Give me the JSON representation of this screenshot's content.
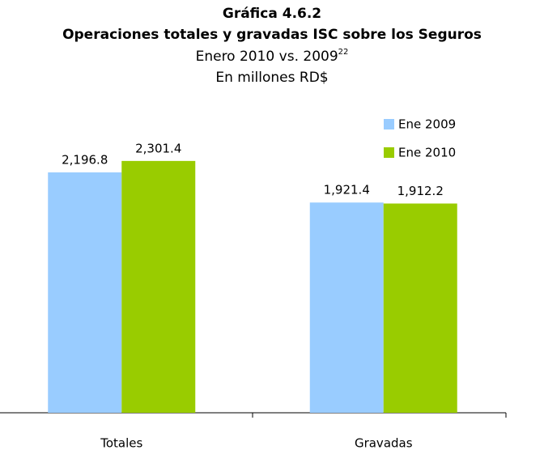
{
  "chart_data": {
    "type": "bar",
    "title": "Gráfica 4.6.2",
    "title_line2": "Operaciones totales y gravadas ISC sobre los Seguros",
    "subtitle": "Enero 2010 vs. 2009",
    "subtitle_superscript": "22",
    "units": "En millones RD$",
    "categories": [
      "Totales",
      "Gravadas"
    ],
    "series": [
      {
        "name": "Ene 2009",
        "color": "#99ccff",
        "values": [
          2196.8,
          1921.4
        ],
        "value_labels": [
          "2,196.8",
          "1,921.4"
        ]
      },
      {
        "name": "Ene 2010",
        "color": "#99cc00",
        "values": [
          2301.4,
          1912.2
        ],
        "value_labels": [
          "2,301.4",
          "1,912.2"
        ]
      }
    ],
    "ylim": [
      0,
      2500
    ],
    "legend": "top-right"
  }
}
